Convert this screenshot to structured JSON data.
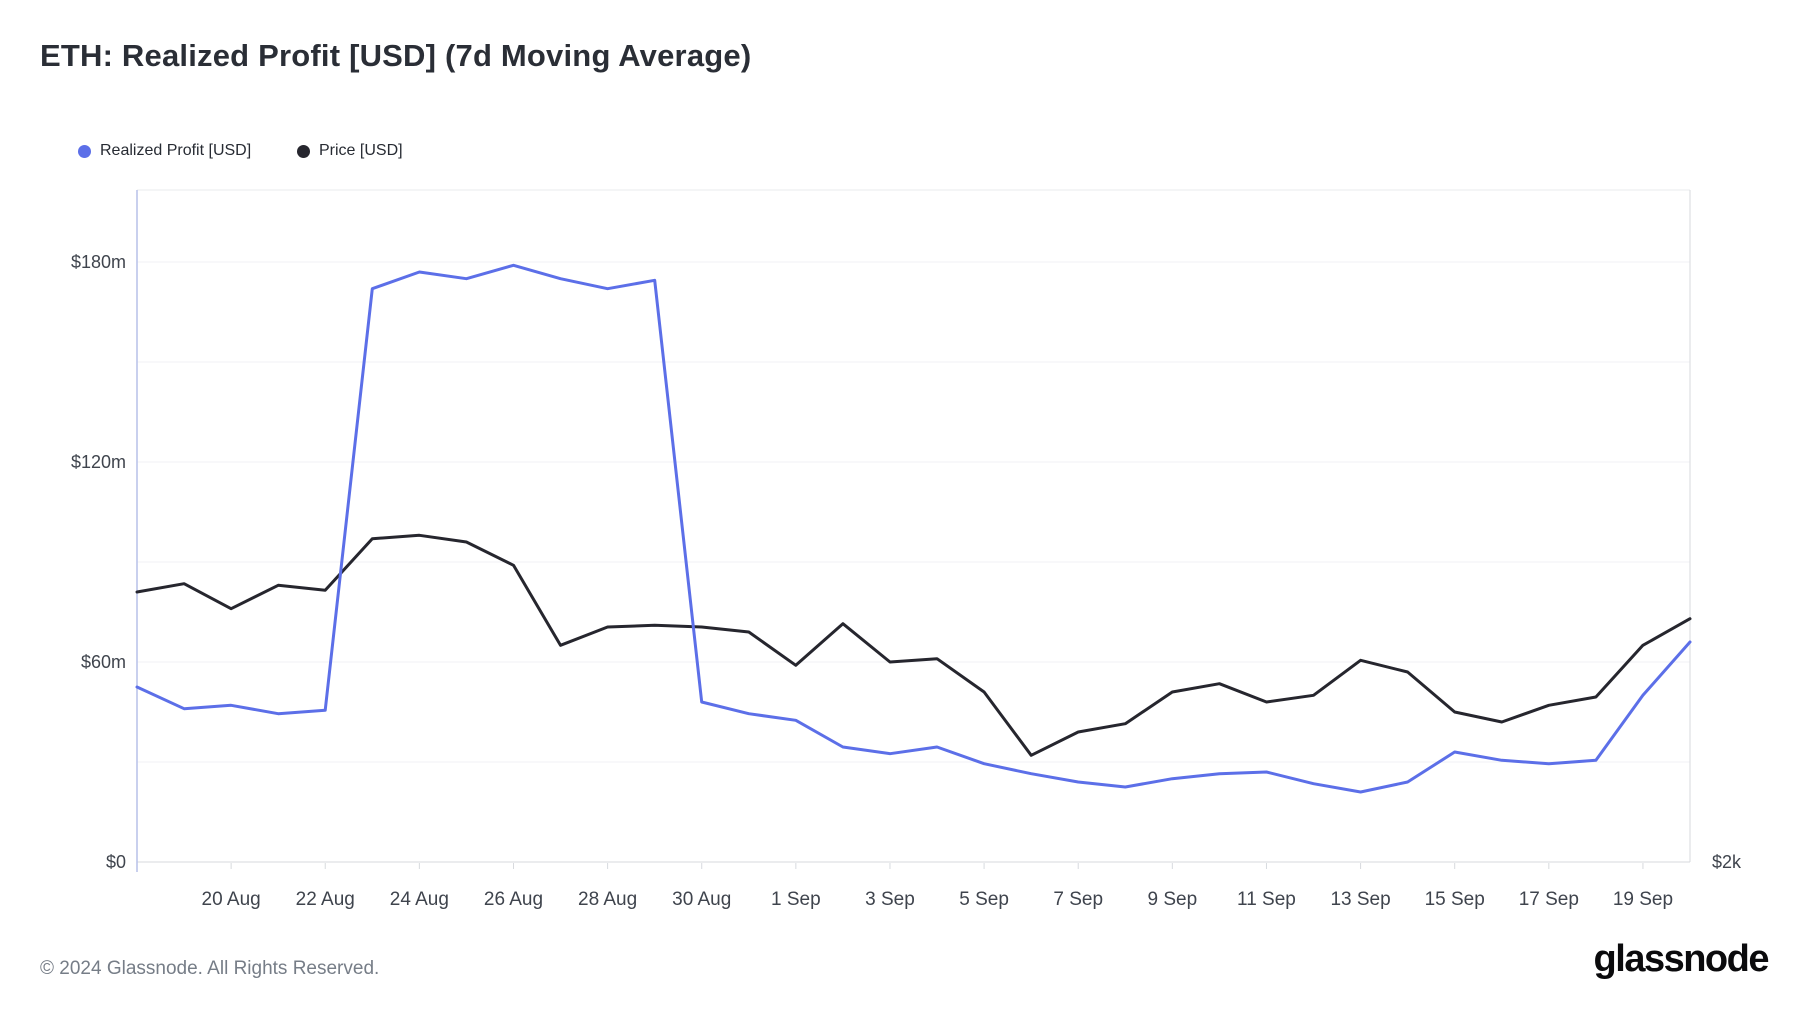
{
  "header": {
    "title": "ETH: Realized Profit [USD] (7d Moving Average)"
  },
  "legend": {
    "items": [
      {
        "label": "Realized Profit [USD]",
        "color": "#5c6fe8"
      },
      {
        "label": "Price [USD]",
        "color": "#26262e"
      }
    ]
  },
  "footer": {
    "copyright": "© 2024 Glassnode. All Rights Reserved.",
    "brand": "glassnode"
  },
  "chart_data": {
    "type": "line",
    "title": "ETH: Realized Profit [USD] (7d Moving Average)",
    "grid": true,
    "legend_position": "top-left",
    "x": [
      "18 Aug",
      "19 Aug",
      "20 Aug",
      "21 Aug",
      "22 Aug",
      "23 Aug",
      "24 Aug",
      "25 Aug",
      "26 Aug",
      "27 Aug",
      "28 Aug",
      "29 Aug",
      "30 Aug",
      "31 Aug",
      "1 Sep",
      "2 Sep",
      "3 Sep",
      "4 Sep",
      "5 Sep",
      "6 Sep",
      "7 Sep",
      "8 Sep",
      "9 Sep",
      "10 Sep",
      "11 Sep",
      "12 Sep",
      "13 Sep",
      "14 Sep",
      "15 Sep",
      "16 Sep",
      "17 Sep",
      "18 Sep",
      "19 Sep",
      "20 Sep"
    ],
    "x_tick_labels": [
      "20 Aug",
      "22 Aug",
      "24 Aug",
      "26 Aug",
      "28 Aug",
      "30 Aug",
      "1 Sep",
      "3 Sep",
      "5 Sep",
      "7 Sep",
      "9 Sep",
      "11 Sep",
      "13 Sep",
      "15 Sep",
      "17 Sep",
      "19 Sep"
    ],
    "y_axis_left": {
      "tick_labels": [
        "$0",
        "$60m",
        "$120m",
        "$180m"
      ],
      "tick_values_m": [
        0,
        60,
        120,
        180
      ],
      "gridline_step_m": 30,
      "range_m": [
        0,
        201.6
      ]
    },
    "y_axis_right": {
      "visible_label": "$2k",
      "visible_label_value_position_m": 0
    },
    "series": [
      {
        "name": "Realized Profit [USD]",
        "color": "#5c6fe8",
        "axis": "left",
        "unit": "USD millions",
        "values": [
          52.5,
          46,
          47,
          44.5,
          45.5,
          172,
          177,
          175,
          179,
          175,
          172,
          174.5,
          48,
          44.5,
          42.5,
          34.5,
          32.5,
          34.5,
          29.5,
          26.5,
          24,
          22.5,
          25,
          26.5,
          27,
          23.5,
          21,
          24,
          33,
          30.5,
          29.5,
          30.5,
          50,
          66
        ]
      },
      {
        "name": "Price [USD]",
        "color": "#26262e",
        "axis": "right",
        "unit": "left-axis-equivalent USD millions (right axis shows $2k at baseline)",
        "values": [
          81,
          83.5,
          76,
          83,
          81.5,
          97,
          98,
          96,
          89,
          65,
          70.5,
          71,
          70.5,
          69,
          59,
          71.5,
          60,
          61,
          51,
          32,
          39,
          41.5,
          51,
          53.5,
          48,
          50,
          60.5,
          57,
          45,
          42,
          47,
          49.5,
          65,
          73
        ]
      }
    ]
  },
  "colors": {
    "grid": "#f1f2f5",
    "axis_border": "#d7dade",
    "left_axis_border": "#b7c1e8",
    "top_border": "#e9ebee",
    "tick_text": "#3f444d",
    "title_text": "#2a2e36"
  }
}
